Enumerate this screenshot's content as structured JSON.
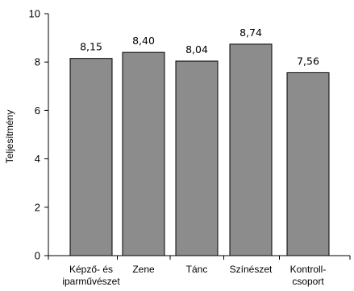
{
  "chart_data": {
    "type": "bar",
    "title": "",
    "xlabel": "",
    "ylabel": "Teljesítmény",
    "ylim": [
      0,
      10
    ],
    "yticks": [
      0,
      2,
      4,
      6,
      8,
      10
    ],
    "grid": false,
    "legend": "none",
    "bar_color": "#8c8c8c",
    "categories": [
      [
        "Képző- és",
        "iparművészet"
      ],
      [
        "Zene"
      ],
      [
        "Tánc"
      ],
      [
        "Színészet"
      ],
      [
        "Kontroll-",
        "csoport"
      ]
    ],
    "values": [
      8.15,
      8.4,
      8.04,
      8.74,
      7.56
    ],
    "value_labels": [
      "8,15",
      "8,40",
      "8,04",
      "8,74",
      "7,56"
    ]
  }
}
